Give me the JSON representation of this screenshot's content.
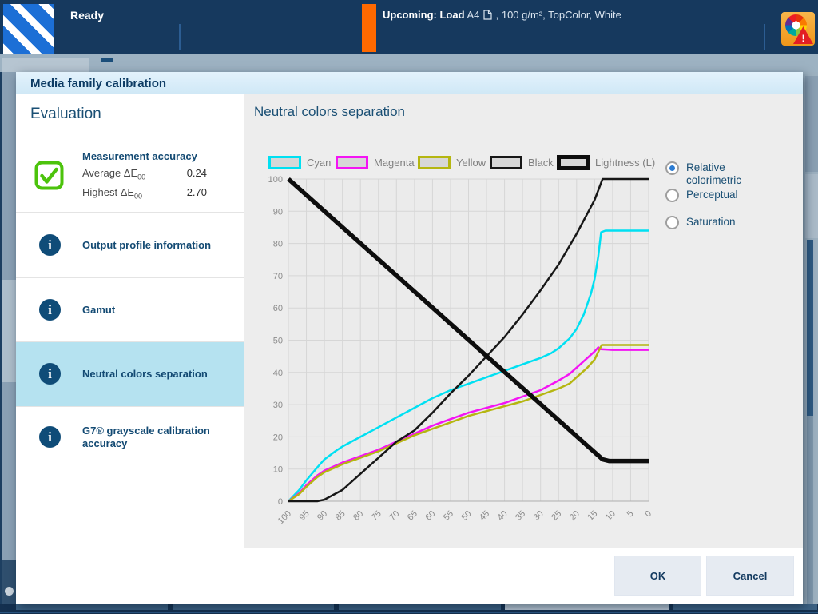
{
  "topbar": {
    "status": "Ready",
    "upcoming_bold": "Upcoming: Load",
    "media_size": "A4",
    "upcoming_rest": ", 100 g/m², TopColor, White"
  },
  "dialog": {
    "title": "Media family calibration",
    "footer": {
      "ok": "OK",
      "cancel": "Cancel"
    }
  },
  "sidebar": {
    "heading": "Evaluation",
    "items": [
      {
        "label": "Measurement accuracy",
        "icon": "check",
        "selected": false,
        "rows": [
          {
            "label": "Average ΔE",
            "sub": "00",
            "value": "0.24"
          },
          {
            "label": "Highest ΔE",
            "sub": "00",
            "value": "2.70"
          }
        ]
      },
      {
        "label": "Output profile information",
        "icon": "info",
        "selected": false
      },
      {
        "label": "Gamut",
        "icon": "info",
        "selected": false
      },
      {
        "label": "Neutral colors separation",
        "icon": "info",
        "selected": true
      },
      {
        "label": "G7® grayscale calibration accuracy",
        "icon": "info",
        "selected": false
      }
    ]
  },
  "panel": {
    "title": "Neutral colors separation",
    "radios": [
      {
        "label": "Relative colorimetric",
        "selected": true
      },
      {
        "label": "Perceptual",
        "selected": false
      },
      {
        "label": "Saturation",
        "selected": false
      }
    ]
  },
  "chart_data": {
    "type": "line",
    "title": "",
    "xlabel": "",
    "ylabel": "",
    "xlim": [
      100,
      0
    ],
    "ylim": [
      0,
      100
    ],
    "grid": true,
    "x_ticks": [
      100,
      95,
      90,
      85,
      80,
      75,
      70,
      65,
      60,
      55,
      50,
      45,
      40,
      35,
      30,
      25,
      20,
      15,
      10,
      5,
      0
    ],
    "y_ticks": [
      0,
      10,
      20,
      30,
      40,
      50,
      60,
      70,
      80,
      90,
      100
    ],
    "legend_position": "top",
    "legend": [
      {
        "label": "Cyan",
        "color": "#00e0f2",
        "thick": false
      },
      {
        "label": "Magenta",
        "color": "#f414f4",
        "thick": false
      },
      {
        "label": "Yellow",
        "color": "#b5b611",
        "thick": false
      },
      {
        "label": "Black",
        "color": "#171717",
        "thick": false
      },
      {
        "label": "Lightness (L)",
        "color": "#0d0d0d",
        "thick": true
      }
    ],
    "series": [
      {
        "name": "Cyan",
        "color": "#00e0f2",
        "width": 2.5,
        "points": [
          [
            100,
            0
          ],
          [
            97,
            3.5
          ],
          [
            95,
            6.5
          ],
          [
            92,
            10.5
          ],
          [
            90,
            13
          ],
          [
            87,
            15.5
          ],
          [
            85,
            17
          ],
          [
            80,
            20
          ],
          [
            75,
            23
          ],
          [
            70,
            26
          ],
          [
            65,
            29
          ],
          [
            60,
            32
          ],
          [
            55,
            34.5
          ],
          [
            50,
            36.5
          ],
          [
            45,
            38.5
          ],
          [
            40,
            40.5
          ],
          [
            35,
            42.5
          ],
          [
            30,
            44.5
          ],
          [
            27,
            46
          ],
          [
            25,
            47.5
          ],
          [
            22,
            50.5
          ],
          [
            20,
            53.5
          ],
          [
            18,
            58
          ],
          [
            16,
            64.5
          ],
          [
            15,
            69
          ],
          [
            14,
            76
          ],
          [
            13.2,
            83.5
          ],
          [
            12,
            84
          ],
          [
            0,
            84
          ]
        ]
      },
      {
        "name": "Magenta",
        "color": "#f414f4",
        "width": 2.5,
        "points": [
          [
            100,
            0
          ],
          [
            97,
            2.5
          ],
          [
            95,
            5
          ],
          [
            92,
            8
          ],
          [
            90,
            9.5
          ],
          [
            85,
            12
          ],
          [
            80,
            14
          ],
          [
            75,
            16
          ],
          [
            70,
            18.5
          ],
          [
            65,
            21
          ],
          [
            60,
            23.5
          ],
          [
            55,
            25.5
          ],
          [
            50,
            27.5
          ],
          [
            45,
            29
          ],
          [
            40,
            30.5
          ],
          [
            35,
            32.5
          ],
          [
            30,
            34.5
          ],
          [
            25,
            37.5
          ],
          [
            22,
            39.5
          ],
          [
            20,
            41.5
          ],
          [
            17,
            44.5
          ],
          [
            15,
            46.5
          ],
          [
            14,
            47.8
          ],
          [
            13.3,
            47.2
          ],
          [
            10,
            47
          ],
          [
            0,
            47
          ]
        ]
      },
      {
        "name": "Yellow",
        "color": "#b5b611",
        "width": 2.5,
        "points": [
          [
            100,
            0
          ],
          [
            97,
            2.2
          ],
          [
            95,
            4.5
          ],
          [
            92,
            7.5
          ],
          [
            90,
            9
          ],
          [
            85,
            11.5
          ],
          [
            80,
            13.5
          ],
          [
            75,
            15.5
          ],
          [
            70,
            18
          ],
          [
            65,
            20.5
          ],
          [
            60,
            22.5
          ],
          [
            55,
            24.5
          ],
          [
            50,
            26.5
          ],
          [
            45,
            28
          ],
          [
            40,
            29.5
          ],
          [
            35,
            31
          ],
          [
            30,
            33
          ],
          [
            25,
            35
          ],
          [
            22,
            36.5
          ],
          [
            20,
            38.5
          ],
          [
            17,
            41.5
          ],
          [
            15,
            44
          ],
          [
            13.5,
            47.5
          ],
          [
            13,
            48.5
          ],
          [
            10,
            48.5
          ],
          [
            0,
            48.5
          ]
        ]
      },
      {
        "name": "Black",
        "color": "#171717",
        "width": 2.5,
        "points": [
          [
            100,
            0
          ],
          [
            92,
            0
          ],
          [
            90,
            0.5
          ],
          [
            85,
            3.5
          ],
          [
            80,
            8.5
          ],
          [
            75,
            13.5
          ],
          [
            70,
            18.5
          ],
          [
            65,
            22
          ],
          [
            60,
            27.5
          ],
          [
            55,
            33.5
          ],
          [
            50,
            39
          ],
          [
            45,
            45
          ],
          [
            40,
            51
          ],
          [
            35,
            58
          ],
          [
            30,
            65.5
          ],
          [
            25,
            73.5
          ],
          [
            20,
            83
          ],
          [
            15,
            93.5
          ],
          [
            12.8,
            100
          ],
          [
            0,
            100
          ]
        ]
      },
      {
        "name": "Lightness (L)",
        "color": "#0d0d0d",
        "width": 5.5,
        "points": [
          [
            100,
            100
          ],
          [
            12.8,
            13
          ],
          [
            11,
            12.5
          ],
          [
            0,
            12.5
          ]
        ]
      }
    ]
  }
}
